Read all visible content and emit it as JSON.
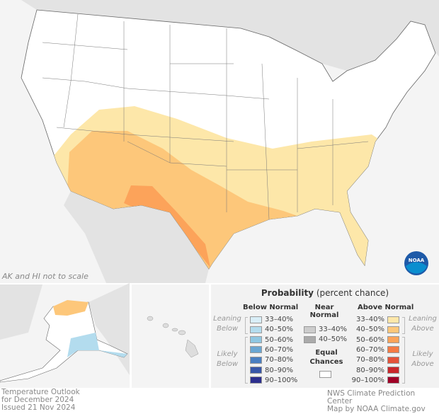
{
  "map": {
    "scale_note": "AK and HI not to scale",
    "logo_text": "NOAA"
  },
  "legend": {
    "title_bold": "Probability",
    "title_rest": " (percent chance)",
    "below": {
      "header": "Below Normal",
      "leaning": "Leaning Below",
      "likely": "Likely Below",
      "items": [
        {
          "label": "33–40%",
          "color": "#d9eef7"
        },
        {
          "label": "40–50%",
          "color": "#b3dcee"
        },
        {
          "label": "50–60%",
          "color": "#8fc7e2"
        },
        {
          "label": "60–70%",
          "color": "#6aa6d2"
        },
        {
          "label": "70–80%",
          "color": "#4a7fc1"
        },
        {
          "label": "80–90%",
          "color": "#3857a8"
        },
        {
          "label": "90–100%",
          "color": "#2c2f8e"
        }
      ]
    },
    "near": {
      "header": "Near Normal",
      "items": [
        {
          "label": "33–40%",
          "color": "#cccccc"
        },
        {
          "label": "40–50%",
          "color": "#aaaaaa"
        }
      ],
      "equal": "Equal Chances"
    },
    "above": {
      "header": "Above Normal",
      "leaning": "Leaning Above",
      "likely": "Likely Above",
      "items": [
        {
          "label": "33–40%",
          "color": "#fde7a9"
        },
        {
          "label": "40–50%",
          "color": "#fdc77a"
        },
        {
          "label": "50–60%",
          "color": "#fca35a"
        },
        {
          "label": "60–70%",
          "color": "#f57b45"
        },
        {
          "label": "70–80%",
          "color": "#e4533a"
        },
        {
          "label": "80–90%",
          "color": "#c9272b"
        },
        {
          "label": "90–100%",
          "color": "#a00026"
        }
      ]
    }
  },
  "footer": {
    "line1": "Temperature Outlook",
    "line2": "for December 2024",
    "line3": "Issued 21 Nov 2024",
    "credit1": "NWS Climate Prediction Center",
    "credit2": "Map by NOAA Climate.gov"
  }
}
